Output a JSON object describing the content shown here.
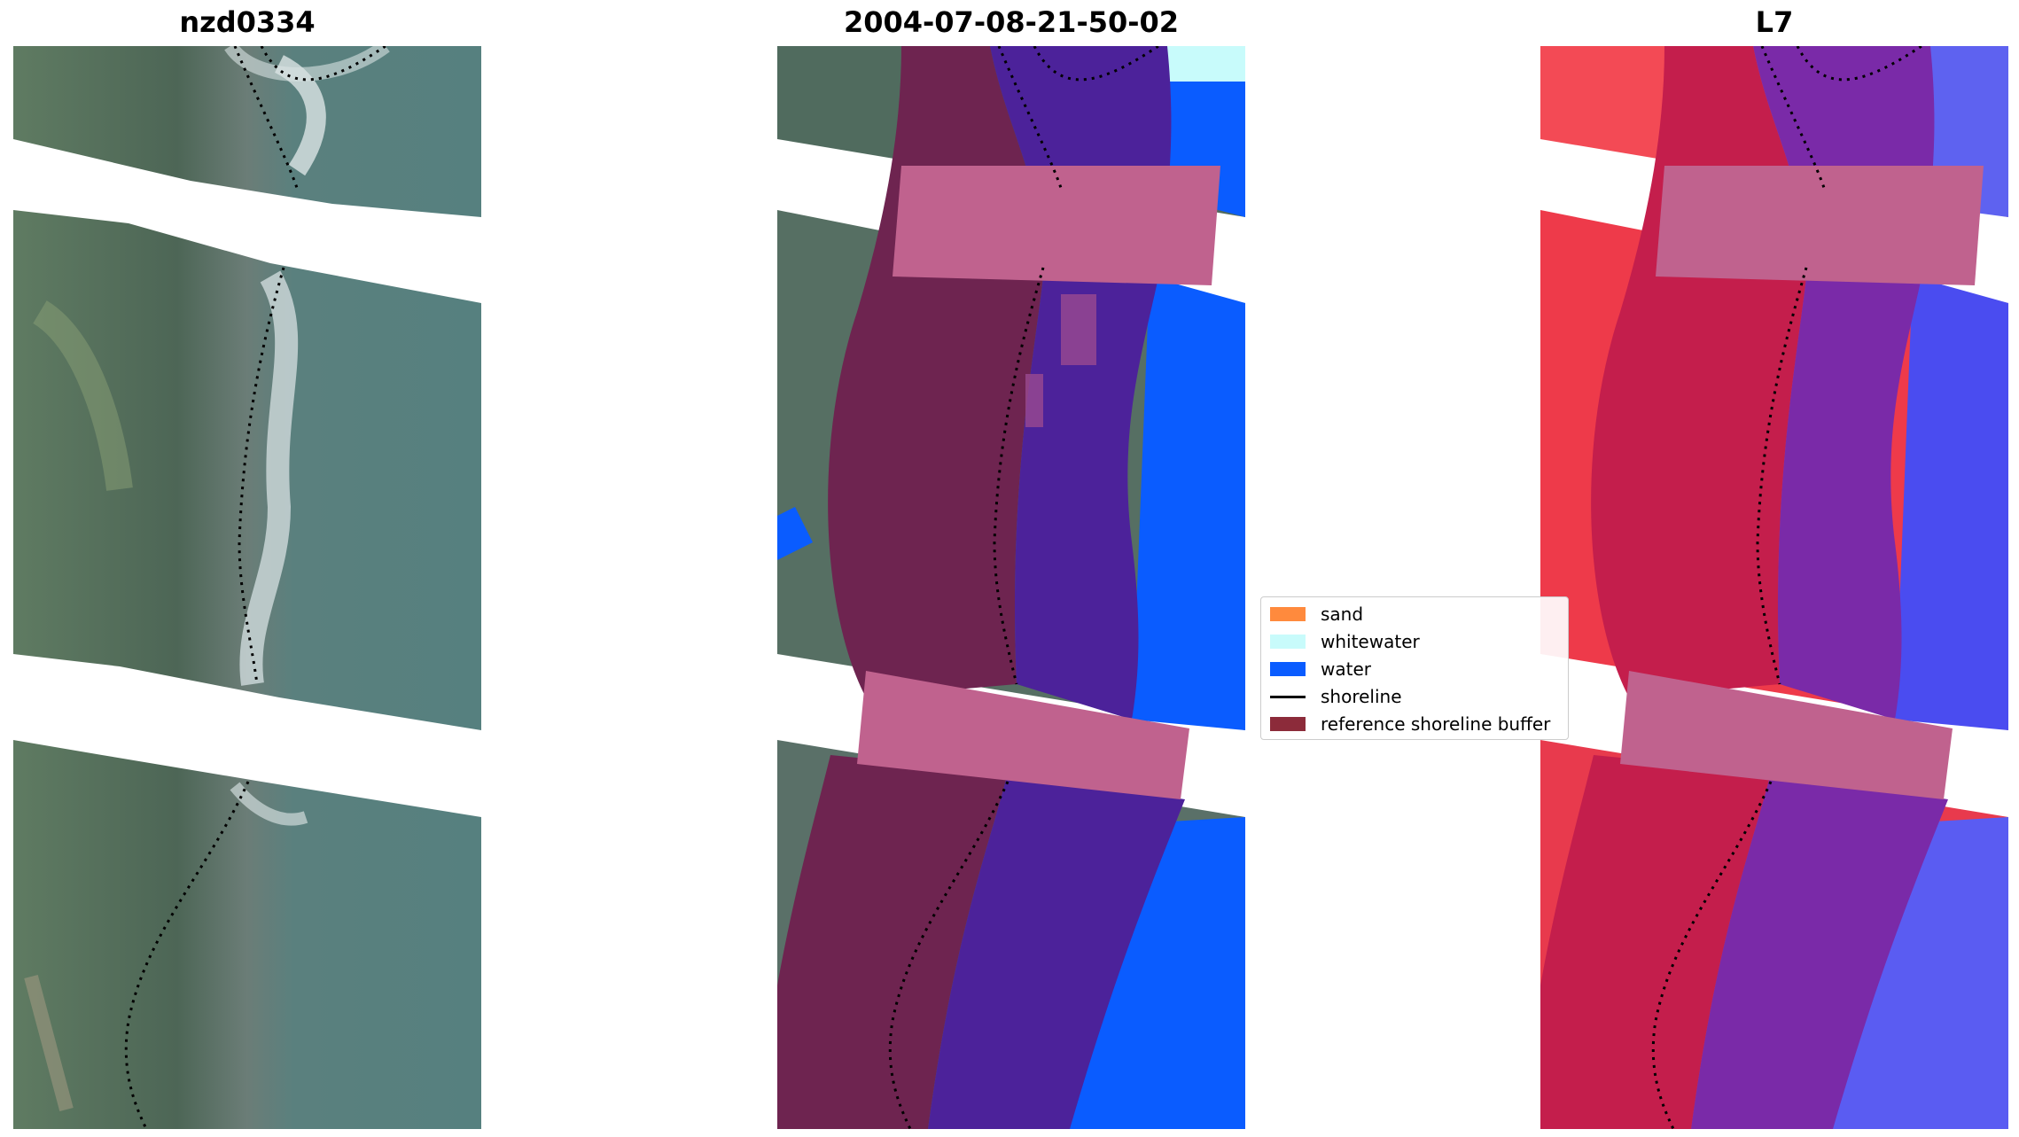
{
  "panels": [
    {
      "title": "nzd0334"
    },
    {
      "title": "2004-07-08-21-50-02"
    },
    {
      "title": "L7"
    }
  ],
  "legend": {
    "items": [
      {
        "label": "sand",
        "color": "#ff8a3d",
        "kind": "patch"
      },
      {
        "label": "whitewater",
        "color": "#c8fbfb",
        "kind": "patch"
      },
      {
        "label": "water",
        "color": "#0a5cff",
        "kind": "patch"
      },
      {
        "label": "shoreline",
        "color": "#000000",
        "kind": "line"
      },
      {
        "label": "reference shoreline buffer",
        "color": "#8c2b3a",
        "kind": "patch"
      }
    ]
  },
  "colors": {
    "imagery_green": "#4f6e66",
    "imagery_sea": "#5b8283",
    "classified_purple": "#4c229a",
    "buffer_pink": "#c0628e",
    "ndwi_red": "#f22a3c",
    "ndwi_blue": "#4a4cf0"
  },
  "icons": [
    "rgb-image",
    "classified-image",
    "index-image"
  ]
}
